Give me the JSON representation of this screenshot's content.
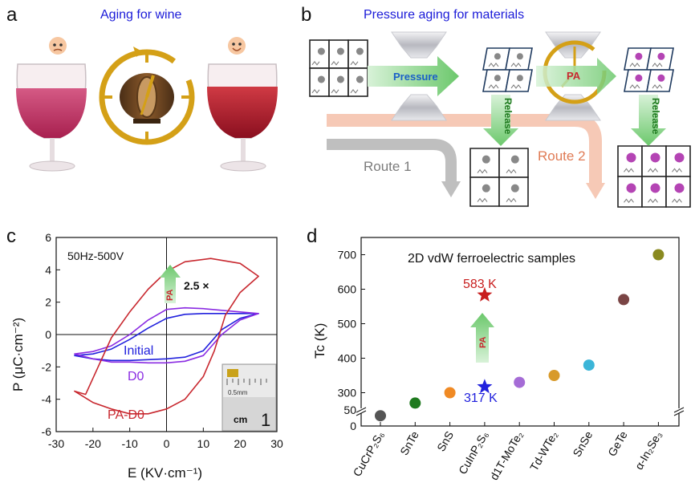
{
  "panels": {
    "a": {
      "label": "a",
      "title": "Aging for wine"
    },
    "b": {
      "label": "b",
      "title": "Pressure aging for materials",
      "pressure_label": "Pressure",
      "pa_label": "PA",
      "release_label": "Release",
      "route1_label": "Route 1",
      "route2_label": "Route 2"
    },
    "c": {
      "label": "c",
      "condition": "50Hz-500V",
      "ratio_label": "2.5 ×",
      "pa_arrow_label": "PA",
      "xlabel": "E (KV·cm⁻¹)",
      "ylabel": "P (μC·cm⁻²)",
      "series_labels": [
        "Initial",
        "D0",
        "PA-D0"
      ],
      "inset_ruler": {
        "scale_text": "0.5mm",
        "unit_text": "cm",
        "number": "1"
      }
    },
    "d": {
      "label": "d",
      "title": "2D vdW ferroelectric samples",
      "ylabel": "Tc (K)",
      "star_high_label": "583 K",
      "star_low_label": "317 K",
      "pa_arrow_label": "PA"
    }
  },
  "colors": {
    "title_blue": "#1a1ad8",
    "initial": "#2222dd",
    "d0": "#8a2be2",
    "pa_d0": "#c8282f",
    "route1": "#999999",
    "route2": "#f0a58a",
    "arrow_green": "#7ed27e",
    "gold": "#d4a017",
    "star_red": "#c81e1e",
    "star_blue": "#2222dd"
  },
  "chart_data": [
    {
      "type": "line",
      "panel": "c",
      "xlabel": "E (KV·cm⁻¹)",
      "ylabel": "P (μC·cm⁻²)",
      "xlim": [
        -30,
        30
      ],
      "ylim": [
        -6,
        6
      ],
      "xticks": [
        -30,
        -20,
        -10,
        0,
        10,
        20,
        30
      ],
      "yticks": [
        -6,
        -4,
        -2,
        0,
        2,
        4,
        6
      ],
      "series": [
        {
          "name": "Initial",
          "color": "#2222dd",
          "upper": [
            [
              -25,
              -1.3
            ],
            [
              -20,
              -1.2
            ],
            [
              -15,
              -0.9
            ],
            [
              -10,
              -0.3
            ],
            [
              -5,
              0.4
            ],
            [
              0,
              1.0
            ],
            [
              5,
              1.25
            ],
            [
              10,
              1.3
            ],
            [
              15,
              1.3
            ],
            [
              20,
              1.3
            ],
            [
              25,
              1.3
            ]
          ],
          "lower": [
            [
              25,
              1.3
            ],
            [
              20,
              1.0
            ],
            [
              15,
              0.3
            ],
            [
              10,
              -1.0
            ],
            [
              5,
              -1.4
            ],
            [
              0,
              -1.5
            ],
            [
              -5,
              -1.55
            ],
            [
              -10,
              -1.6
            ],
            [
              -15,
              -1.6
            ],
            [
              -20,
              -1.5
            ],
            [
              -25,
              -1.3
            ]
          ]
        },
        {
          "name": "D0",
          "color": "#8a2be2",
          "upper": [
            [
              -25,
              -1.2
            ],
            [
              -20,
              -1.05
            ],
            [
              -15,
              -0.7
            ],
            [
              -10,
              0.0
            ],
            [
              -5,
              0.9
            ],
            [
              0,
              1.55
            ],
            [
              5,
              1.65
            ],
            [
              10,
              1.6
            ],
            [
              15,
              1.5
            ],
            [
              20,
              1.4
            ],
            [
              25,
              1.3
            ]
          ],
          "lower": [
            [
              25,
              1.3
            ],
            [
              20,
              0.9
            ],
            [
              15,
              0.0
            ],
            [
              10,
              -1.3
            ],
            [
              5,
              -1.65
            ],
            [
              0,
              -1.75
            ],
            [
              -5,
              -1.75
            ],
            [
              -10,
              -1.7
            ],
            [
              -15,
              -1.7
            ],
            [
              -20,
              -1.5
            ],
            [
              -25,
              -1.2
            ]
          ]
        },
        {
          "name": "PA-D0",
          "color": "#c8282f",
          "upper": [
            [
              -25,
              -3.5
            ],
            [
              -22,
              -3.7
            ],
            [
              -18,
              -1.7
            ],
            [
              -15,
              -0.2
            ],
            [
              -10,
              1.4
            ],
            [
              -5,
              2.8
            ],
            [
              0,
              3.9
            ],
            [
              5,
              4.5
            ],
            [
              12,
              4.7
            ],
            [
              20,
              4.4
            ],
            [
              25,
              3.6
            ]
          ],
          "lower": [
            [
              25,
              3.6
            ],
            [
              20,
              2.6
            ],
            [
              16,
              1.2
            ],
            [
              13,
              -1.0
            ],
            [
              10,
              -2.6
            ],
            [
              5,
              -4.0
            ],
            [
              0,
              -4.6
            ],
            [
              -5,
              -4.9
            ],
            [
              -10,
              -4.9
            ],
            [
              -15,
              -4.6
            ],
            [
              -20,
              -4.2
            ],
            [
              -25,
              -3.5
            ]
          ]
        }
      ]
    },
    {
      "type": "scatter",
      "panel": "d",
      "title": "2D vdW ferroelectric samples",
      "ylabel": "Tc (K)",
      "categories": [
        "CuCrP₂S₆",
        "SnTe",
        "SnS",
        "CuInP₂S₆",
        "d1T-MoTe₂",
        "Td-WTe₂",
        "SnSe",
        "GeTe",
        "α-In₂Se₃"
      ],
      "yticks": [
        0,
        50,
        300,
        400,
        500,
        600,
        700
      ],
      "axis_break": [
        50,
        250
      ],
      "values": [
        {
          "category": "CuCrP₂S₆",
          "value": 32,
          "color": "#555555"
        },
        {
          "category": "SnTe",
          "value": 270,
          "color": "#1f7a1f"
        },
        {
          "category": "SnS",
          "value": 300,
          "color": "#f08a24"
        },
        {
          "category": "d1T-MoTe₂",
          "value": 330,
          "color": "#a56cd6"
        },
        {
          "category": "Td-WTe₂",
          "value": 350,
          "color": "#d89a2a"
        },
        {
          "category": "SnSe",
          "value": 380,
          "color": "#3bb5d8"
        },
        {
          "category": "GeTe",
          "value": 570,
          "color": "#7a4545"
        },
        {
          "category": "α-In₂Se₃",
          "value": 700,
          "color": "#8a8a20"
        }
      ],
      "stars": [
        {
          "category": "CuInP₂S₆",
          "value": 583,
          "label": "583 K",
          "color": "#c81e1e"
        },
        {
          "category": "CuInP₂S₆",
          "value": 317,
          "label": "317 K",
          "color": "#2222dd"
        }
      ]
    }
  ]
}
